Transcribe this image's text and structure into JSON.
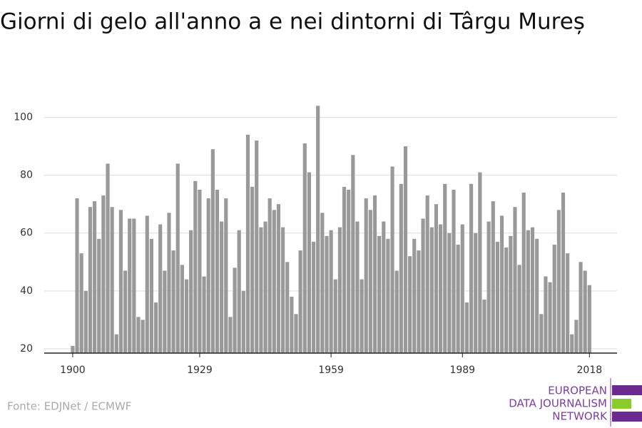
{
  "chart_data": {
    "type": "bar",
    "title": "Giorni di gelo all'anno a e nei dintorni di Târgu Mureș",
    "source": "Fonte: EDJNet / ECMWF",
    "logo": [
      "EUROPEAN",
      "DATA JOURNALISM",
      "NETWORK"
    ],
    "color": "#999999",
    "grid": true,
    "x": [
      1900,
      1901,
      1902,
      1903,
      1904,
      1905,
      1906,
      1907,
      1908,
      1909,
      1910,
      1911,
      1912,
      1913,
      1914,
      1915,
      1916,
      1917,
      1918,
      1919,
      1920,
      1921,
      1922,
      1923,
      1924,
      1925,
      1926,
      1927,
      1928,
      1929,
      1930,
      1931,
      1932,
      1933,
      1934,
      1935,
      1936,
      1937,
      1938,
      1939,
      1940,
      1941,
      1942,
      1943,
      1944,
      1945,
      1946,
      1947,
      1948,
      1949,
      1950,
      1951,
      1952,
      1953,
      1954,
      1955,
      1956,
      1957,
      1958,
      1959,
      1960,
      1961,
      1962,
      1963,
      1964,
      1965,
      1966,
      1967,
      1968,
      1969,
      1970,
      1971,
      1972,
      1973,
      1974,
      1975,
      1976,
      1977,
      1978,
      1979,
      1980,
      1981,
      1982,
      1983,
      1984,
      1985,
      1986,
      1987,
      1988,
      1989,
      1990,
      1991,
      1992,
      1993,
      1994,
      1995,
      1996,
      1997,
      1998,
      1999,
      2000,
      2001,
      2002,
      2003,
      2004,
      2005,
      2006,
      2007,
      2008,
      2009,
      2010,
      2011,
      2012,
      2013,
      2014,
      2015,
      2016,
      2017,
      2018
    ],
    "values": [
      21,
      72,
      53,
      40,
      69,
      71,
      58,
      73,
      84,
      69,
      25,
      68,
      47,
      65,
      65,
      31,
      30,
      66,
      58,
      36,
      63,
      47,
      67,
      54,
      84,
      49,
      44,
      61,
      78,
      75,
      45,
      72,
      89,
      75,
      64,
      72,
      31,
      48,
      61,
      40,
      94,
      76,
      92,
      62,
      64,
      72,
      68,
      70,
      62,
      50,
      38,
      32,
      54,
      91,
      81,
      57,
      104,
      67,
      59,
      61,
      44,
      62,
      76,
      75,
      87,
      64,
      44,
      72,
      68,
      73,
      59,
      64,
      58,
      83,
      47,
      77,
      90,
      52,
      58,
      54,
      65,
      73,
      62,
      70,
      63,
      77,
      60,
      75,
      56,
      63,
      36,
      77,
      60,
      81,
      37,
      64,
      71,
      57,
      66,
      55,
      59,
      69,
      49,
      74,
      61,
      62,
      58,
      32,
      45,
      43,
      56,
      68,
      74,
      53,
      25,
      30,
      50,
      47,
      42
    ],
    "xlim": [
      1893.5,
      2024.3
    ],
    "xticks": [
      1900,
      1929,
      1959,
      1989,
      2018
    ],
    "ylim": [
      18.5,
      110
    ],
    "yticks": [
      20,
      40,
      60,
      80,
      100
    ]
  }
}
